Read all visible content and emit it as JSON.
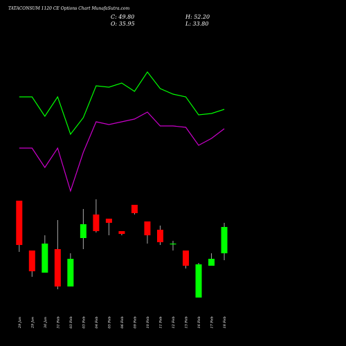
{
  "header": {
    "title": "TATACONSUM 1120 CE Options Chart MunafaSutra.com",
    "close": "C: 49.80",
    "high": "H: 52.20",
    "open": "O: 35.95",
    "low": "L: 33.80"
  },
  "colors": {
    "background": "#000000",
    "up": "#00ff00",
    "down": "#ff0000",
    "upper_band": "#00ff00",
    "lower_band": "#cc00cc",
    "wick": "#aaaaaa",
    "text": "#ffffff"
  },
  "chart_data": {
    "type": "candlestick",
    "grid": false,
    "categories": [
      "29 Jan",
      "29 Jan",
      "30 Jan",
      "31 Feb",
      "03 Feb",
      "03 Feb",
      "04 Feb",
      "05 Feb",
      "06 Feb",
      "09 Feb",
      "10 Feb",
      "11 Feb",
      "12 Feb",
      "13 Feb",
      "16 Feb",
      "17 Feb",
      "18 Feb"
    ],
    "candles": [
      {
        "open": 32.5,
        "high": 32.5,
        "low": 14.0,
        "close": 16.5
      },
      {
        "open": 14.5,
        "high": 14.5,
        "low": 5.0,
        "close": 7.0
      },
      {
        "open": 6.5,
        "high": 20.0,
        "low": 6.5,
        "close": 17.0
      },
      {
        "open": 15.0,
        "high": 25.5,
        "low": 0.5,
        "close": 1.5
      },
      {
        "open": 1.5,
        "high": 13.5,
        "low": 1.5,
        "close": 11.5
      },
      {
        "open": 19.0,
        "high": 29.5,
        "low": 15.0,
        "close": 24.0
      },
      {
        "open": 27.5,
        "high": 33.0,
        "low": 21.0,
        "close": 21.5
      },
      {
        "open": 26.0,
        "high": 26.0,
        "low": 20.0,
        "close": 24.5
      },
      {
        "open": 21.5,
        "high": 21.5,
        "low": 20.0,
        "close": 20.5
      },
      {
        "open": 31.0,
        "high": 31.0,
        "low": 27.5,
        "close": 28.0
      },
      {
        "open": 25.0,
        "high": 25.0,
        "low": 17.0,
        "close": 20.0
      },
      {
        "open": 22.0,
        "high": 23.5,
        "low": 16.5,
        "close": 17.5
      },
      {
        "open": 17.0,
        "high": 18.0,
        "low": 14.5,
        "close": 17.0
      },
      {
        "open": 14.5,
        "high": 14.5,
        "low": 8.0,
        "close": 9.0
      },
      {
        "open": -2.5,
        "high": 10.0,
        "low": -2.5,
        "close": 9.5
      },
      {
        "open": 9.0,
        "high": 13.5,
        "low": 9.0,
        "close": 11.5
      },
      {
        "open": 13.5,
        "high": 24.5,
        "low": 11.0,
        "close": 23.0
      }
    ],
    "upper_band": [
      70,
      70,
      63,
      70,
      56.5,
      62.5,
      74,
      73.5,
      75,
      72,
      79,
      73,
      71,
      70,
      63.5,
      64,
      65.5
    ],
    "lower_band": [
      51.5,
      51.5,
      44.5,
      51.5,
      36,
      50,
      61,
      60,
      61,
      62,
      64.5,
      59.5,
      59.5,
      59,
      52.5,
      55,
      58.5
    ],
    "band_x": [
      0,
      1,
      2,
      3,
      4,
      5,
      6,
      7,
      8,
      9,
      10,
      11,
      12,
      13,
      14,
      15,
      16
    ],
    "ylim": [
      -5,
      95
    ],
    "xlim": [
      -1.5,
      25.5
    ]
  }
}
